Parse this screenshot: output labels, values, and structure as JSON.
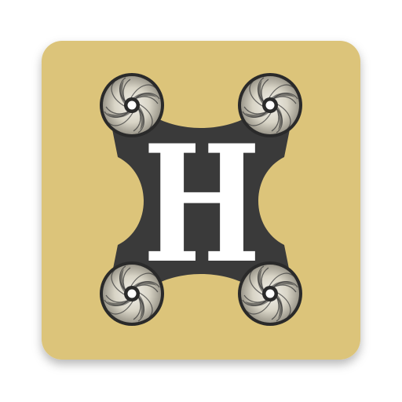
{
  "app_icon": {
    "monogram": "H",
    "colors": {
      "background": "#DCC47A",
      "frame": "#3A3A3A",
      "rotor_light": "#DCD9CE",
      "rotor_dark": "#2A2A2A",
      "monogram": "#FFFFFF"
    }
  }
}
